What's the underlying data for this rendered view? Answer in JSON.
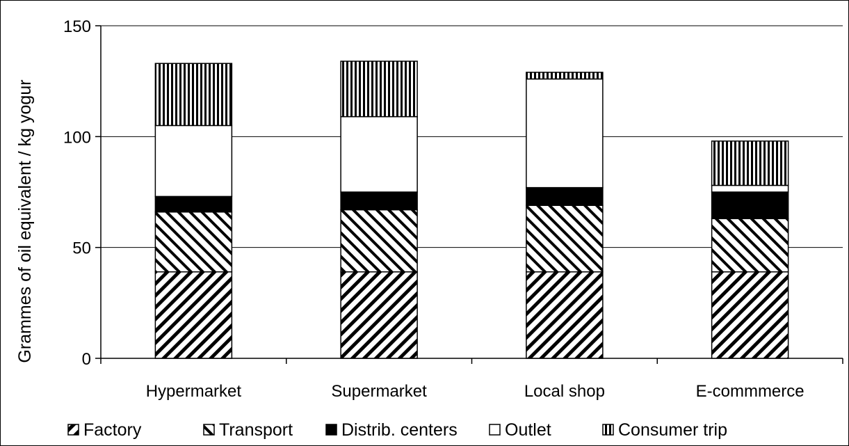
{
  "chart_data": {
    "type": "bar",
    "stacked": true,
    "categories": [
      "Hypermarket",
      "Supermarket",
      "Local shop",
      "E-commmerce"
    ],
    "series": [
      {
        "name": "Factory",
        "values": [
          39,
          39,
          39,
          39
        ],
        "pattern": "diagonal-up"
      },
      {
        "name": "Transport",
        "values": [
          27,
          28,
          30,
          24
        ],
        "pattern": "diagonal-down"
      },
      {
        "name": "Distrib. centers",
        "values": [
          7,
          8,
          8,
          12
        ],
        "pattern": "solid-black"
      },
      {
        "name": "Outlet",
        "values": [
          32,
          34,
          49,
          3
        ],
        "pattern": "solid-white"
      },
      {
        "name": "Consumer trip",
        "values": [
          28,
          25,
          3,
          20
        ],
        "pattern": "vertical-lines"
      }
    ],
    "ylabel": "Grammes of oil equivalent / kg yogur",
    "ylim": [
      0,
      150
    ],
    "yticks": [
      0,
      50,
      100,
      150
    ],
    "grid": true,
    "legend_position": "bottom"
  }
}
